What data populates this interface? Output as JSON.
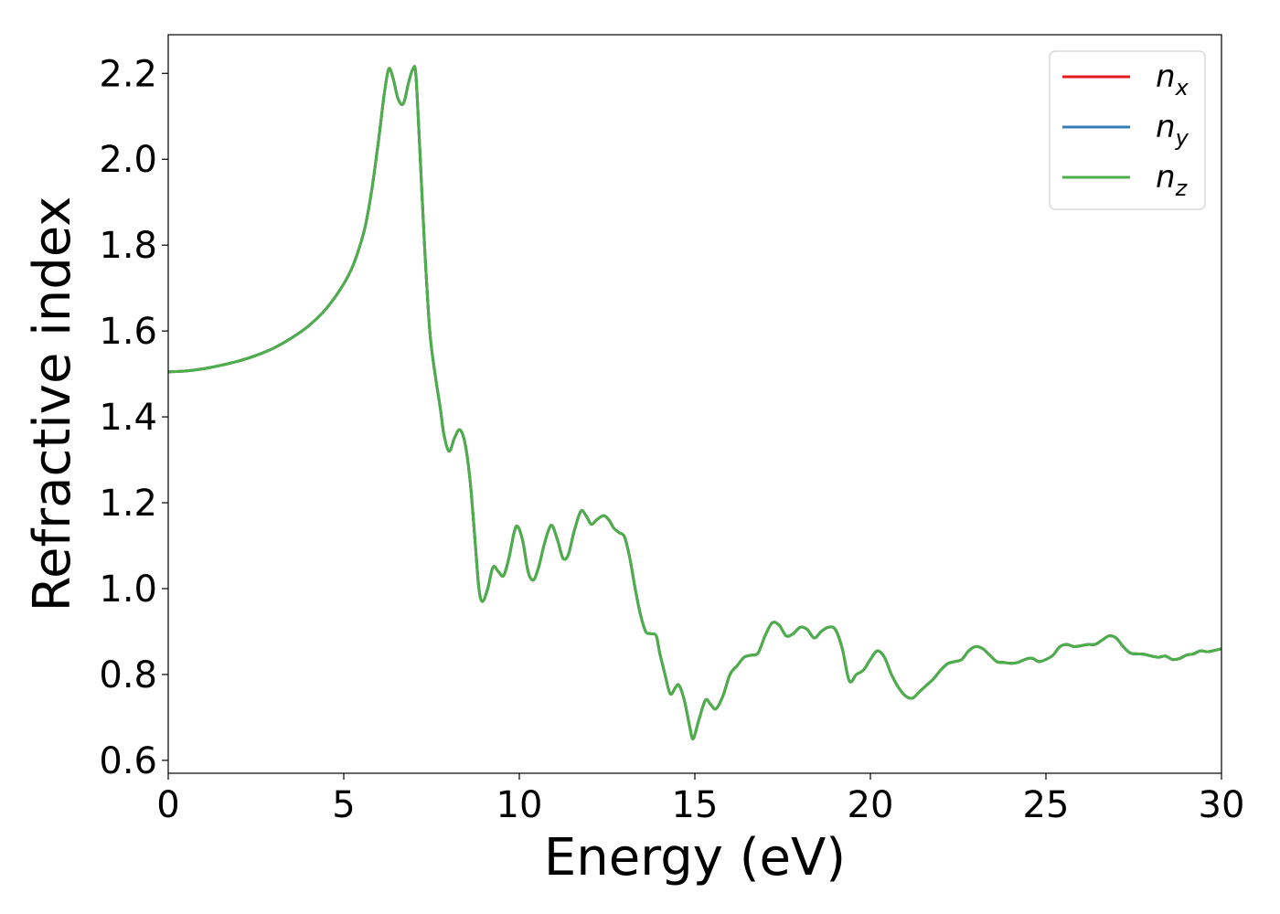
{
  "chart_data": {
    "type": "line",
    "title": "",
    "xlabel": "Energy (eV)",
    "ylabel": "Refractive index",
    "xlim": [
      0,
      30
    ],
    "ylim": [
      0.57,
      2.29
    ],
    "x_ticks": [
      "0",
      "5",
      "10",
      "15",
      "20",
      "25",
      "30"
    ],
    "y_ticks": [
      "0.6",
      "0.8",
      "1.0",
      "1.2",
      "1.4",
      "1.6",
      "1.8",
      "2.0",
      "2.2"
    ],
    "grid": false,
    "legend_position": "top-right",
    "legend": [
      {
        "main": "n",
        "sub": "x",
        "color": "#e41a1c"
      },
      {
        "main": "n",
        "sub": "y",
        "color": "#377eb8"
      },
      {
        "main": "n",
        "sub": "z",
        "color": "#4daf4a"
      }
    ],
    "note": "",
    "series": [
      {
        "name": "n_x",
        "color": "#e41a1c",
        "points": [
          [
            0,
            1.505
          ],
          [
            0.5,
            1.507
          ],
          [
            1,
            1.512
          ],
          [
            1.5,
            1.52
          ],
          [
            2,
            1.53
          ],
          [
            2.5,
            1.543
          ],
          [
            3,
            1.56
          ],
          [
            3.5,
            1.583
          ],
          [
            4,
            1.612
          ],
          [
            4.5,
            1.652
          ],
          [
            5,
            1.71
          ],
          [
            5.3,
            1.76
          ],
          [
            5.6,
            1.84
          ],
          [
            5.8,
            1.93
          ],
          [
            6.0,
            2.05
          ],
          [
            6.15,
            2.15
          ],
          [
            6.28,
            2.21
          ],
          [
            6.4,
            2.19
          ],
          [
            6.55,
            2.14
          ],
          [
            6.7,
            2.13
          ],
          [
            6.85,
            2.18
          ],
          [
            6.97,
            2.21
          ],
          [
            7.05,
            2.2
          ],
          [
            7.15,
            2.05
          ],
          [
            7.3,
            1.8
          ],
          [
            7.45,
            1.6
          ],
          [
            7.6,
            1.5
          ],
          [
            7.75,
            1.42
          ],
          [
            7.85,
            1.36
          ],
          [
            8.0,
            1.32
          ],
          [
            8.15,
            1.35
          ],
          [
            8.3,
            1.37
          ],
          [
            8.45,
            1.34
          ],
          [
            8.6,
            1.25
          ],
          [
            8.75,
            1.1
          ],
          [
            8.85,
            1.0
          ],
          [
            8.95,
            0.97
          ],
          [
            9.1,
            1.0
          ],
          [
            9.25,
            1.05
          ],
          [
            9.4,
            1.04
          ],
          [
            9.55,
            1.03
          ],
          [
            9.7,
            1.07
          ],
          [
            9.85,
            1.13
          ],
          [
            9.95,
            1.145
          ],
          [
            10.1,
            1.11
          ],
          [
            10.25,
            1.04
          ],
          [
            10.4,
            1.02
          ],
          [
            10.55,
            1.05
          ],
          [
            10.7,
            1.1
          ],
          [
            10.85,
            1.14
          ],
          [
            10.95,
            1.145
          ],
          [
            11.1,
            1.11
          ],
          [
            11.25,
            1.07
          ],
          [
            11.4,
            1.08
          ],
          [
            11.55,
            1.13
          ],
          [
            11.75,
            1.18
          ],
          [
            11.9,
            1.17
          ],
          [
            12.05,
            1.15
          ],
          [
            12.2,
            1.16
          ],
          [
            12.4,
            1.17
          ],
          [
            12.55,
            1.16
          ],
          [
            12.7,
            1.14
          ],
          [
            12.85,
            1.13
          ],
          [
            13.0,
            1.12
          ],
          [
            13.15,
            1.07
          ],
          [
            13.3,
            1.0
          ],
          [
            13.45,
            0.94
          ],
          [
            13.6,
            0.9
          ],
          [
            13.75,
            0.895
          ],
          [
            13.9,
            0.89
          ],
          [
            14.0,
            0.85
          ],
          [
            14.15,
            0.8
          ],
          [
            14.3,
            0.755
          ],
          [
            14.45,
            0.77
          ],
          [
            14.55,
            0.775
          ],
          [
            14.7,
            0.74
          ],
          [
            14.85,
            0.68
          ],
          [
            14.95,
            0.65
          ],
          [
            15.1,
            0.69
          ],
          [
            15.3,
            0.74
          ],
          [
            15.45,
            0.73
          ],
          [
            15.6,
            0.72
          ],
          [
            15.8,
            0.75
          ],
          [
            16.0,
            0.8
          ],
          [
            16.2,
            0.82
          ],
          [
            16.4,
            0.84
          ],
          [
            16.6,
            0.845
          ],
          [
            16.8,
            0.85
          ],
          [
            17.0,
            0.89
          ],
          [
            17.2,
            0.92
          ],
          [
            17.4,
            0.915
          ],
          [
            17.6,
            0.89
          ],
          [
            17.8,
            0.895
          ],
          [
            18.0,
            0.91
          ],
          [
            18.2,
            0.905
          ],
          [
            18.4,
            0.885
          ],
          [
            18.6,
            0.9
          ],
          [
            18.8,
            0.91
          ],
          [
            19.0,
            0.905
          ],
          [
            19.2,
            0.86
          ],
          [
            19.4,
            0.785
          ],
          [
            19.6,
            0.8
          ],
          [
            19.8,
            0.81
          ],
          [
            20.0,
            0.835
          ],
          [
            20.2,
            0.855
          ],
          [
            20.4,
            0.84
          ],
          [
            20.6,
            0.8
          ],
          [
            20.8,
            0.77
          ],
          [
            21.0,
            0.75
          ],
          [
            21.2,
            0.745
          ],
          [
            21.4,
            0.76
          ],
          [
            21.6,
            0.775
          ],
          [
            21.8,
            0.79
          ],
          [
            22.0,
            0.81
          ],
          [
            22.2,
            0.825
          ],
          [
            22.4,
            0.83
          ],
          [
            22.6,
            0.835
          ],
          [
            22.8,
            0.855
          ],
          [
            23.0,
            0.865
          ],
          [
            23.2,
            0.86
          ],
          [
            23.4,
            0.845
          ],
          [
            23.6,
            0.83
          ],
          [
            23.8,
            0.828
          ],
          [
            24.0,
            0.826
          ],
          [
            24.2,
            0.828
          ],
          [
            24.4,
            0.835
          ],
          [
            24.6,
            0.838
          ],
          [
            24.8,
            0.83
          ],
          [
            25.0,
            0.835
          ],
          [
            25.2,
            0.845
          ],
          [
            25.4,
            0.865
          ],
          [
            25.6,
            0.87
          ],
          [
            25.8,
            0.865
          ],
          [
            26.0,
            0.867
          ],
          [
            26.2,
            0.87
          ],
          [
            26.4,
            0.87
          ],
          [
            26.6,
            0.88
          ],
          [
            26.8,
            0.89
          ],
          [
            27.0,
            0.885
          ],
          [
            27.2,
            0.865
          ],
          [
            27.4,
            0.85
          ],
          [
            27.6,
            0.848
          ],
          [
            27.8,
            0.847
          ],
          [
            28.0,
            0.843
          ],
          [
            28.2,
            0.84
          ],
          [
            28.4,
            0.843
          ],
          [
            28.6,
            0.835
          ],
          [
            28.8,
            0.837
          ],
          [
            29.0,
            0.845
          ],
          [
            29.2,
            0.848
          ],
          [
            29.4,
            0.855
          ],
          [
            29.6,
            0.853
          ],
          [
            29.8,
            0.856
          ],
          [
            30,
            0.86
          ]
        ]
      },
      {
        "name": "n_y",
        "color": "#377eb8",
        "same_as": "n_x"
      },
      {
        "name": "n_z",
        "color": "#4daf4a",
        "same_as": "n_x"
      }
    ]
  }
}
